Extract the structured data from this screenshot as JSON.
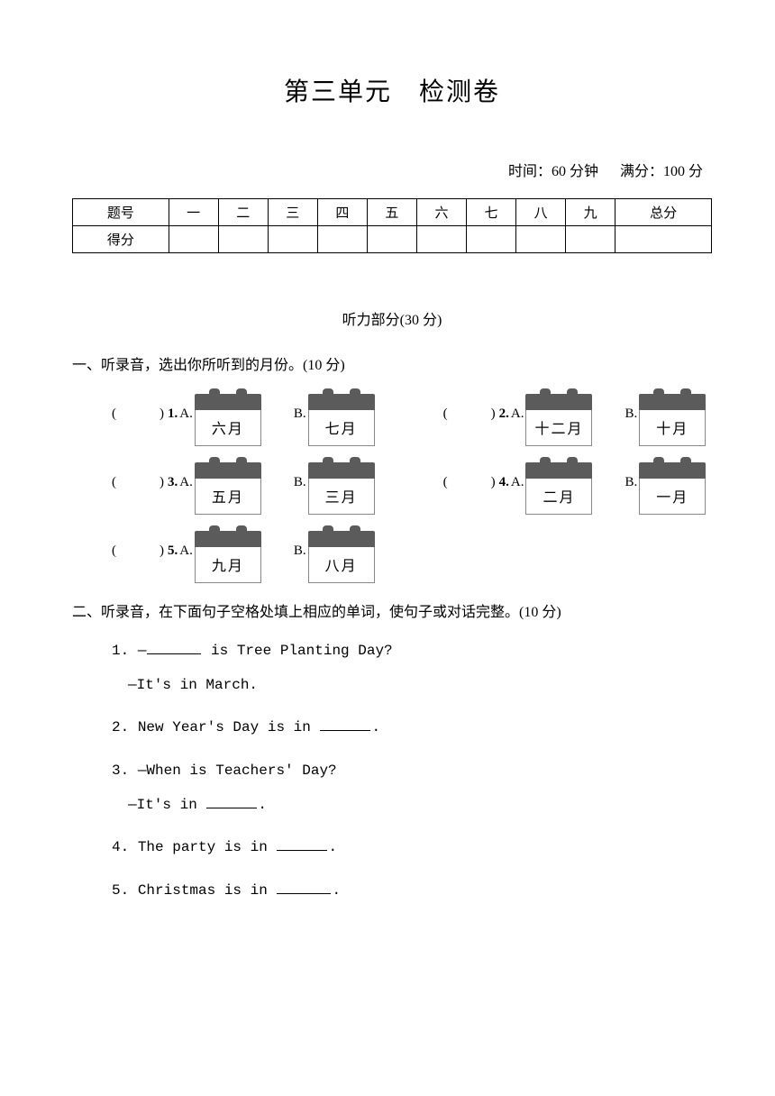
{
  "title": "第三单元　检测卷",
  "meta": {
    "time_label": "时间：60 分钟",
    "score_label": "满分：100 分"
  },
  "score_table": {
    "header_cells": [
      "题号",
      "一",
      "二",
      "三",
      "四",
      "五",
      "六",
      "七",
      "八",
      "九",
      "总分"
    ],
    "row_label": "得分",
    "column_count": 11
  },
  "listening_header": "听力部分(30 分)",
  "q1": {
    "heading": "一、听录音，选出你所听到的月份。(10 分)",
    "items": [
      {
        "num": "1.",
        "a": "六月",
        "b": "七月"
      },
      {
        "num": "2.",
        "a": "十二月",
        "b": "十月"
      },
      {
        "num": "3.",
        "a": "五月",
        "b": "三月"
      },
      {
        "num": "4.",
        "a": "二月",
        "b": "一月"
      },
      {
        "num": "5.",
        "a": "九月",
        "b": "八月"
      }
    ],
    "labels": {
      "paren_open": "(",
      "paren_close": ")",
      "a": "A.",
      "b": "B."
    }
  },
  "q2": {
    "heading": "二、听录音，在下面句子空格处填上相应的单词，使句子或对话完整。(10 分)",
    "items": [
      {
        "num": "1.",
        "line1a": "—",
        "line1b": " is Tree Planting Day?",
        "line2": "—It's in March."
      },
      {
        "num": "2.",
        "line1a": "New Year's Day is in ",
        "line1b": "."
      },
      {
        "num": "3.",
        "line1a": "—When is Teachers' Day?",
        "line2a": "—It's in ",
        "line2b": "."
      },
      {
        "num": "4.",
        "line1a": "The party is in ",
        "line1b": "."
      },
      {
        "num": "5.",
        "line1a": "Christmas is in ",
        "line1b": "."
      }
    ]
  },
  "colors": {
    "background": "#ffffff",
    "text": "#000000",
    "calendar_header": "#5b5b5b",
    "calendar_border": "#888888"
  }
}
